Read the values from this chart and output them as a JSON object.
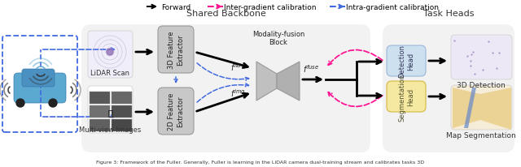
{
  "legend": [
    {
      "label": "Forward",
      "color": "#000000",
      "ls": "solid"
    },
    {
      "label": "Inter-gradient calibration",
      "color": "#FF1493",
      "ls": "dashed"
    },
    {
      "label": "Intra-gradient calibration",
      "color": "#4169E1",
      "ls": "dashed"
    }
  ],
  "shared_backbone_label": "Shared Backbone",
  "task_heads_label": "Task Heads",
  "lidar_label": "LiDAR Scan",
  "multiview_label": "Multi-view Images",
  "feat3d_label": "3D Feature\nExtractor",
  "feat2d_label": "2D Feature\nExtractor",
  "fusion_label": "Modality-fusion\nBlock",
  "detection_head_label": "Detection\nHead",
  "segmentation_head_label": "Segmentation\nHead",
  "detection_label": "3D Detection",
  "segmentation_label": "Map Segmentation",
  "caption": "Figure 3: Framework of the Fuller. Generally, Fuller is learning in the LiDAR camera dual-training stream and calibrates tasks 3D",
  "inter_color": "#FF1493",
  "intra_color": "#4169E1",
  "forward_color": "#000000",
  "feat_box_color": "#c8c8c8",
  "feat_box_edge": "#999999",
  "detect_box_color": "#cde0f0",
  "detect_box_edge": "#99b8d8",
  "segment_box_color": "#f5e8a0",
  "segment_box_edge": "#d4b840",
  "backbone_bg": "#e8e8e8",
  "task_bg": "#e8e8e8",
  "car_box_color": "#5BA8D0",
  "dashed_car_color": "#4169E1"
}
